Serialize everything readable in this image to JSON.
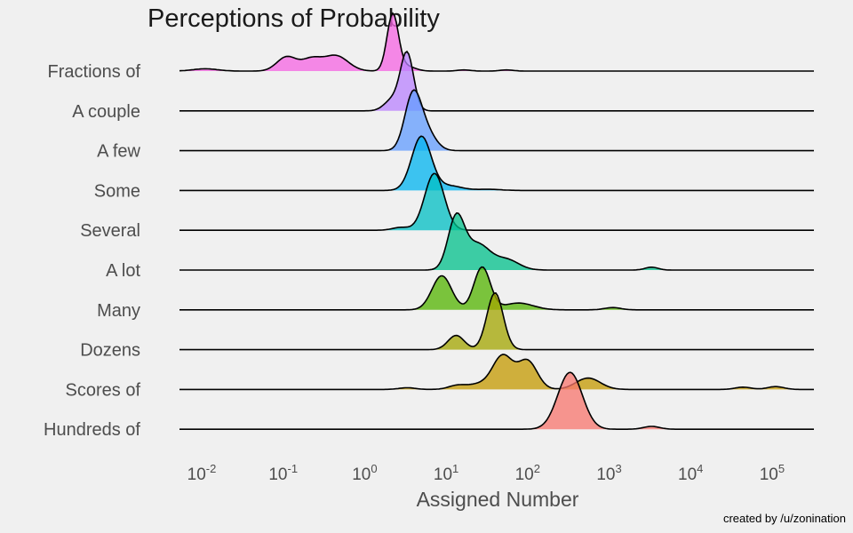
{
  "chart_data": {
    "type": "ridgeline",
    "title": "Perceptions of Probability",
    "xlabel": "Assigned Number",
    "ylabel": "",
    "x_scale": "log10",
    "xlim": [
      0.005,
      200000
    ],
    "x_ticks": [
      {
        "value": 0.01,
        "base": "10",
        "exp": "-2"
      },
      {
        "value": 0.1,
        "base": "10",
        "exp": "-1"
      },
      {
        "value": 1,
        "base": "10",
        "exp": "0"
      },
      {
        "value": 10,
        "base": "10",
        "exp": "1"
      },
      {
        "value": 100,
        "base": "10",
        "exp": "2"
      },
      {
        "value": 1000,
        "base": "10",
        "exp": "3"
      },
      {
        "value": 10000,
        "base": "10",
        "exp": "4"
      },
      {
        "value": 100000,
        "base": "10",
        "exp": "5"
      }
    ],
    "grid": false,
    "legend": "none",
    "credit": "created by /u/zonination",
    "series": [
      {
        "name": "Fractions of",
        "color": "#f564e3",
        "peaks": [
          [
            0.01,
            0.04,
            0.15
          ],
          [
            0.1,
            0.25,
            0.12
          ],
          [
            0.2,
            0.2,
            0.12
          ],
          [
            0.4,
            0.27,
            0.15
          ],
          [
            2,
            1.0,
            0.07
          ],
          [
            3,
            0.08,
            0.1
          ],
          [
            15,
            0.02,
            0.08
          ],
          [
            50,
            0.02,
            0.08
          ]
        ]
      },
      {
        "name": "A couple",
        "color": "#b983ff",
        "peaks": [
          [
            3,
            1.0,
            0.08
          ],
          [
            2,
            0.2,
            0.1
          ]
        ]
      },
      {
        "name": "A few",
        "color": "#619cff",
        "peaks": [
          [
            3.5,
            0.9,
            0.1
          ],
          [
            5,
            0.35,
            0.12
          ]
        ]
      },
      {
        "name": "Some",
        "color": "#00b4f0",
        "peaks": [
          [
            4.5,
            0.95,
            0.12
          ],
          [
            10,
            0.08,
            0.15
          ],
          [
            30,
            0.02,
            0.15
          ]
        ]
      },
      {
        "name": "Several",
        "color": "#00bfc4",
        "peaks": [
          [
            6.5,
            1.0,
            0.12
          ],
          [
            2.5,
            0.05,
            0.1
          ]
        ]
      },
      {
        "name": "A lot",
        "color": "#00c08b",
        "peaks": [
          [
            12,
            0.9,
            0.1
          ],
          [
            22,
            0.45,
            0.15
          ],
          [
            50,
            0.18,
            0.15
          ],
          [
            3000,
            0.05,
            0.08
          ]
        ]
      },
      {
        "name": "Many",
        "color": "#53b400",
        "peaks": [
          [
            8,
            0.6,
            0.12
          ],
          [
            25,
            0.75,
            0.1
          ],
          [
            70,
            0.12,
            0.18
          ],
          [
            1000,
            0.04,
            0.1
          ]
        ]
      },
      {
        "name": "Dozens",
        "color": "#a3a500",
        "peaks": [
          [
            12,
            0.25,
            0.1
          ],
          [
            36,
            1.0,
            0.1
          ]
        ]
      },
      {
        "name": "Scores of",
        "color": "#c49a00",
        "peaks": [
          [
            45,
            0.55,
            0.12
          ],
          [
            90,
            0.5,
            0.12
          ],
          [
            25,
            0.1,
            0.2
          ],
          [
            500,
            0.2,
            0.15
          ],
          [
            3,
            0.03,
            0.1
          ],
          [
            12,
            0.05,
            0.1
          ],
          [
            40000,
            0.04,
            0.1
          ],
          [
            100000,
            0.05,
            0.1
          ]
        ]
      },
      {
        "name": "Hundreds of",
        "color": "#f8766d",
        "peaks": [
          [
            300,
            1.0,
            0.15
          ],
          [
            3000,
            0.05,
            0.1
          ]
        ]
      }
    ]
  }
}
